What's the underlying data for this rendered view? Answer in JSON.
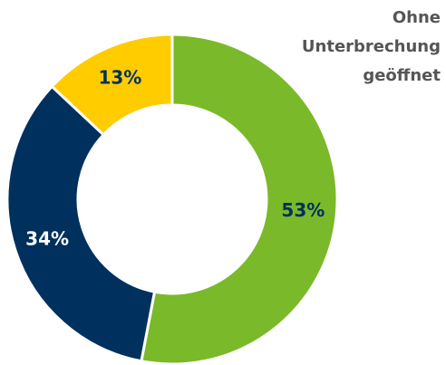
{
  "chart_data": {
    "type": "donut",
    "title": "Ohne Unterbrechung geöffnet",
    "values": [
      53,
      34,
      13
    ],
    "value_labels": [
      "53%",
      "34%",
      "13%"
    ],
    "colors": [
      "#7ab929",
      "#00305e",
      "#ffcc00"
    ]
  }
}
